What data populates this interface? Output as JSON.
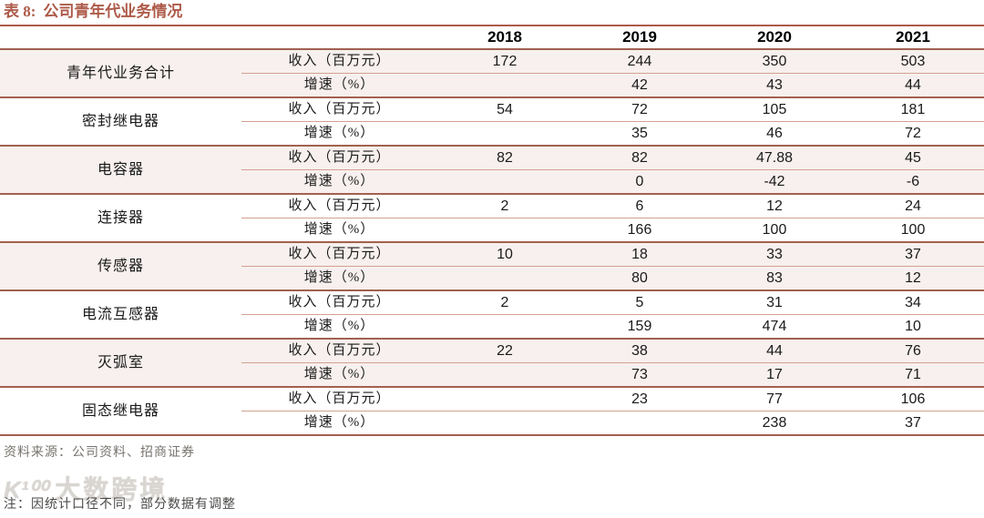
{
  "title": {
    "prefix": "表 8:",
    "text": "公司青年代业务情况"
  },
  "table": {
    "year_headers": [
      "2018",
      "2019",
      "2020",
      "2021"
    ],
    "metric_labels": {
      "revenue": "收入（百万元）",
      "growth": "增速（%）"
    },
    "groups": [
      {
        "category": "青年代业务合计",
        "revenue": [
          "172",
          "244",
          "350",
          "503"
        ],
        "growth": [
          "",
          "42",
          "43",
          "44"
        ]
      },
      {
        "category": "密封继电器",
        "revenue": [
          "54",
          "72",
          "105",
          "181"
        ],
        "growth": [
          "",
          "35",
          "46",
          "72"
        ]
      },
      {
        "category": "电容器",
        "revenue": [
          "82",
          "82",
          "47.88",
          "45"
        ],
        "growth": [
          "",
          "0",
          "-42",
          "-6"
        ]
      },
      {
        "category": "连接器",
        "revenue": [
          "2",
          "6",
          "12",
          "24"
        ],
        "growth": [
          "",
          "166",
          "100",
          "100"
        ]
      },
      {
        "category": "传感器",
        "revenue": [
          "10",
          "18",
          "33",
          "37"
        ],
        "growth": [
          "",
          "80",
          "83",
          "12"
        ]
      },
      {
        "category": "电流互感器",
        "revenue": [
          "2",
          "5",
          "31",
          "34"
        ],
        "growth": [
          "",
          "159",
          "474",
          "10"
        ]
      },
      {
        "category": "灭弧室",
        "revenue": [
          "22",
          "38",
          "44",
          "76"
        ],
        "growth": [
          "",
          "73",
          "17",
          "71"
        ]
      },
      {
        "category": "固态继电器",
        "revenue": [
          "",
          "23",
          "77",
          "106"
        ],
        "growth": [
          "",
          "",
          "238",
          "37"
        ]
      }
    ]
  },
  "footer": {
    "source": "资料来源：公司资料、招商证券",
    "note": "注：因统计口径不同，部分数据有调整"
  },
  "watermark": {
    "logo": "K¹⁰⁰",
    "text": "大数跨境"
  },
  "colors": {
    "accent": "#ad5a49",
    "line_dark": "#a2614f",
    "line_light": "#d3a18f",
    "row_pink": "#f7f0ee"
  }
}
